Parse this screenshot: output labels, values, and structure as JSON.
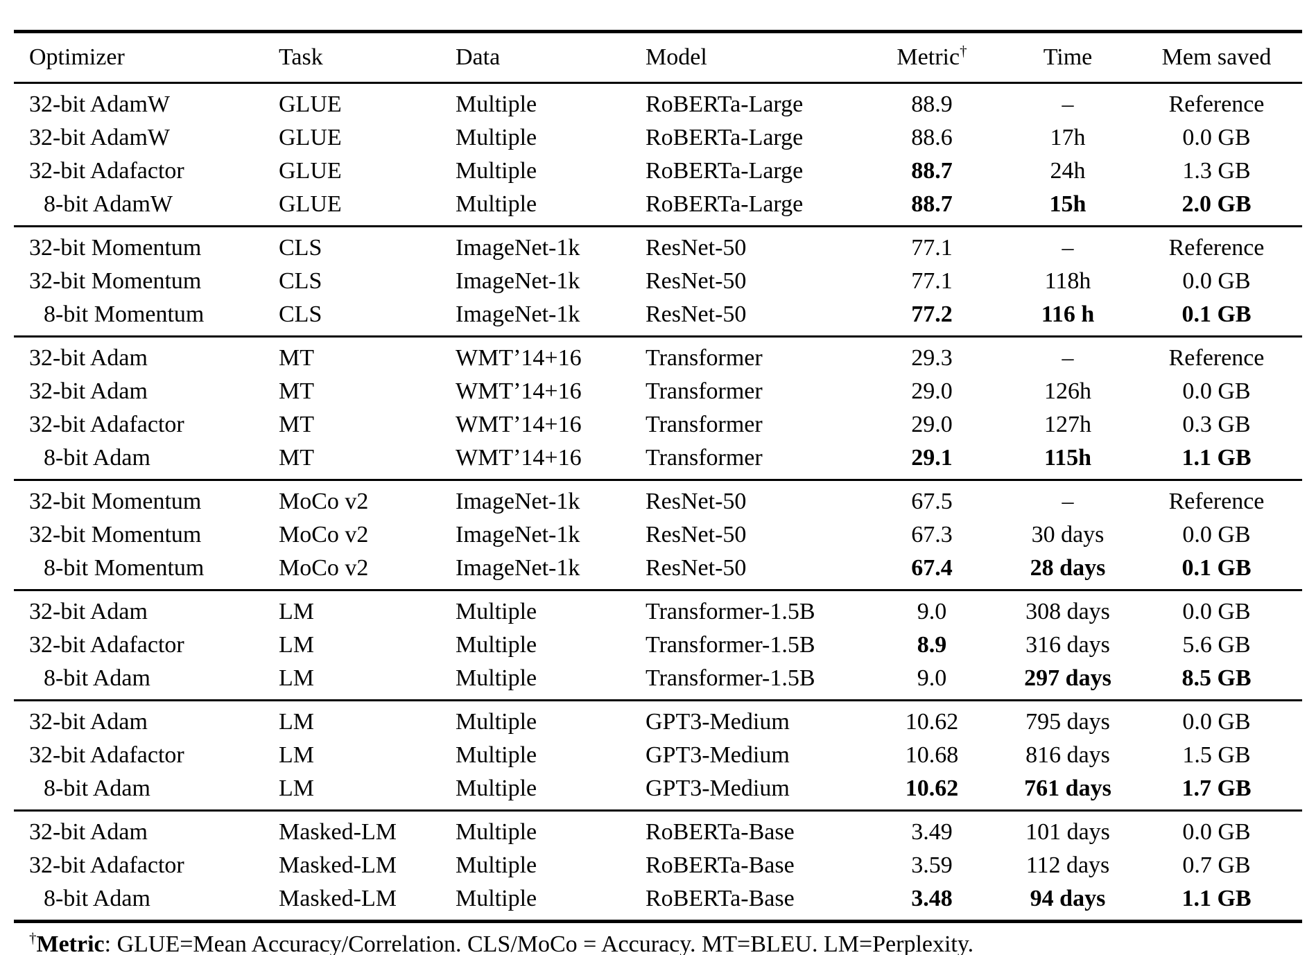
{
  "table": {
    "columns": [
      {
        "key": "optimizer",
        "label": "Optimizer"
      },
      {
        "key": "task",
        "label": "Task"
      },
      {
        "key": "data",
        "label": "Data"
      },
      {
        "key": "model",
        "label": "Model"
      },
      {
        "key": "metric",
        "label": "Metric",
        "sup": "†"
      },
      {
        "key": "time",
        "label": "Time"
      },
      {
        "key": "mem-saved",
        "label": "Mem saved"
      }
    ],
    "groups": [
      {
        "rows": [
          {
            "cells": [
              "32-bit AdamW",
              "GLUE",
              "Multiple",
              "RoBERTa-Large",
              "88.9",
              "–",
              "Reference"
            ],
            "bold": []
          },
          {
            "cells": [
              "32-bit AdamW",
              "GLUE",
              "Multiple",
              "RoBERTa-Large",
              "88.6",
              "17h",
              "0.0 GB"
            ],
            "bold": []
          },
          {
            "cells": [
              "32-bit Adafactor",
              "GLUE",
              "Multiple",
              "RoBERTa-Large",
              "88.7",
              "24h",
              "1.3 GB"
            ],
            "bold": [
              4
            ]
          },
          {
            "cells": [
              "8-bit AdamW",
              "GLUE",
              "Multiple",
              "RoBERTa-Large",
              "88.7",
              "15h",
              "2.0 GB"
            ],
            "bold": [
              4,
              5,
              6
            ]
          }
        ]
      },
      {
        "rows": [
          {
            "cells": [
              "32-bit Momentum",
              "CLS",
              "ImageNet-1k",
              "ResNet-50",
              "77.1",
              "–",
              "Reference"
            ],
            "bold": []
          },
          {
            "cells": [
              "32-bit Momentum",
              "CLS",
              "ImageNet-1k",
              "ResNet-50",
              "77.1",
              "118h",
              "0.0 GB"
            ],
            "bold": []
          },
          {
            "cells": [
              "8-bit Momentum",
              "CLS",
              "ImageNet-1k",
              "ResNet-50",
              "77.2",
              "116 h",
              "0.1 GB"
            ],
            "bold": [
              4,
              5,
              6
            ]
          }
        ]
      },
      {
        "rows": [
          {
            "cells": [
              "32-bit Adam",
              "MT",
              "WMT’14+16",
              "Transformer",
              "29.3",
              "–",
              "Reference"
            ],
            "bold": []
          },
          {
            "cells": [
              "32-bit Adam",
              "MT",
              "WMT’14+16",
              "Transformer",
              "29.0",
              "126h",
              "0.0 GB"
            ],
            "bold": []
          },
          {
            "cells": [
              "32-bit Adafactor",
              "MT",
              "WMT’14+16",
              "Transformer",
              "29.0",
              "127h",
              "0.3 GB"
            ],
            "bold": []
          },
          {
            "cells": [
              "8-bit Adam",
              "MT",
              "WMT’14+16",
              "Transformer",
              "29.1",
              "115h",
              "1.1 GB"
            ],
            "bold": [
              4,
              5,
              6
            ]
          }
        ]
      },
      {
        "rows": [
          {
            "cells": [
              "32-bit Momentum",
              "MoCo v2",
              "ImageNet-1k",
              "ResNet-50",
              "67.5",
              "–",
              "Reference"
            ],
            "bold": []
          },
          {
            "cells": [
              "32-bit Momentum",
              "MoCo v2",
              "ImageNet-1k",
              "ResNet-50",
              "67.3",
              "30 days",
              "0.0 GB"
            ],
            "bold": []
          },
          {
            "cells": [
              "8-bit Momentum",
              "MoCo v2",
              "ImageNet-1k",
              "ResNet-50",
              "67.4",
              "28 days",
              "0.1 GB"
            ],
            "bold": [
              4,
              5,
              6
            ]
          }
        ]
      },
      {
        "rows": [
          {
            "cells": [
              "32-bit Adam",
              "LM",
              "Multiple",
              "Transformer-1.5B",
              "9.0",
              "308 days",
              "0.0 GB"
            ],
            "bold": []
          },
          {
            "cells": [
              "32-bit Adafactor",
              "LM",
              "Multiple",
              "Transformer-1.5B",
              "8.9",
              "316 days",
              "5.6 GB"
            ],
            "bold": [
              4
            ]
          },
          {
            "cells": [
              "8-bit Adam",
              "LM",
              "Multiple",
              "Transformer-1.5B",
              "9.0",
              "297 days",
              "8.5 GB"
            ],
            "bold": [
              5,
              6
            ]
          }
        ]
      },
      {
        "rows": [
          {
            "cells": [
              "32-bit Adam",
              "LM",
              "Multiple",
              "GPT3-Medium",
              "10.62",
              "795 days",
              "0.0 GB"
            ],
            "bold": []
          },
          {
            "cells": [
              "32-bit Adafactor",
              "LM",
              "Multiple",
              "GPT3-Medium",
              "10.68",
              "816 days",
              "1.5 GB"
            ],
            "bold": []
          },
          {
            "cells": [
              "8-bit Adam",
              "LM",
              "Multiple",
              "GPT3-Medium",
              "10.62",
              "761 days",
              "1.7 GB"
            ],
            "bold": [
              4,
              5,
              6
            ]
          }
        ]
      },
      {
        "rows": [
          {
            "cells": [
              "32-bit Adam",
              "Masked-LM",
              "Multiple",
              "RoBERTa-Base",
              "3.49",
              "101 days",
              "0.0 GB"
            ],
            "bold": []
          },
          {
            "cells": [
              "32-bit Adafactor",
              "Masked-LM",
              "Multiple",
              "RoBERTa-Base",
              "3.59",
              "112 days",
              "0.7 GB"
            ],
            "bold": []
          },
          {
            "cells": [
              "8-bit Adam",
              "Masked-LM",
              "Multiple",
              "RoBERTa-Base",
              "3.48",
              "94 days",
              "1.1 GB"
            ],
            "bold": [
              4,
              5,
              6
            ]
          }
        ]
      }
    ],
    "footnote": {
      "dagger": "†",
      "label": "Metric",
      "rest": ": GLUE=Mean Accuracy/Correlation. CLS/MoCo = Accuracy. MT=BLEU. LM=Perplexity."
    }
  }
}
